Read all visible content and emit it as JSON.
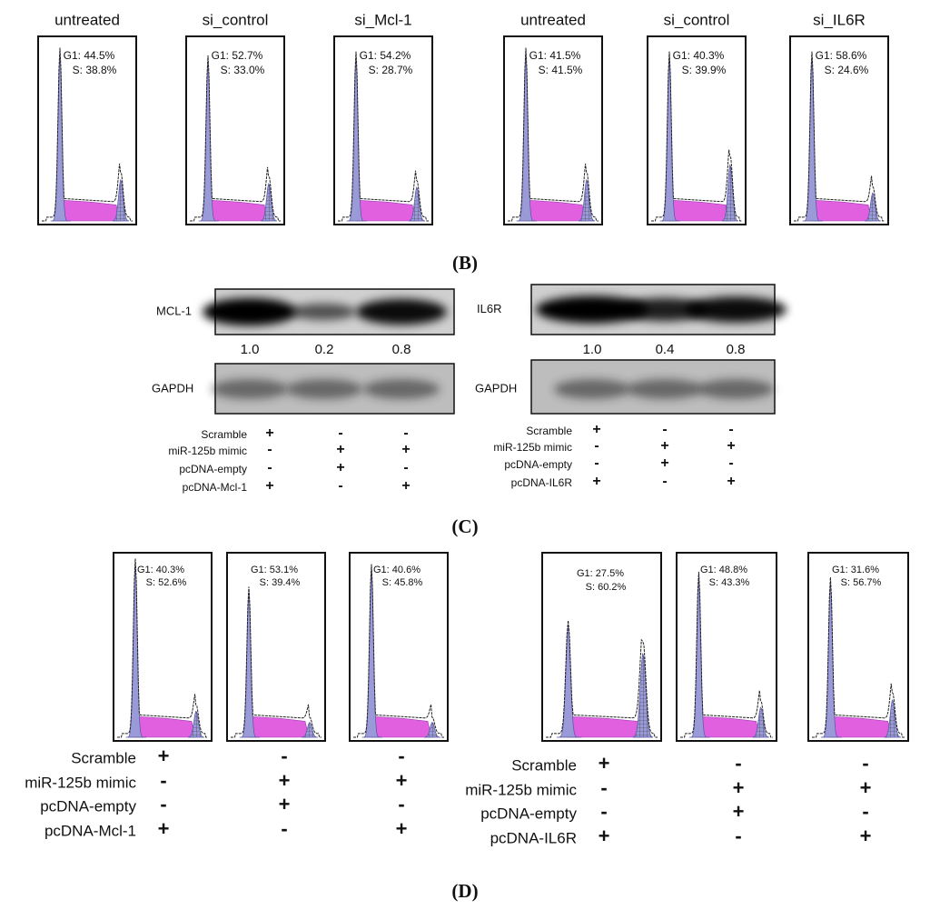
{
  "panel_b": {
    "label": "(B)",
    "plots": [
      {
        "title": "untreated",
        "g1": "G1: 44.5%",
        "s": "S: 38.8%"
      },
      {
        "title": "si_control",
        "g1": "G1: 52.7%",
        "s": "S: 33.0%"
      },
      {
        "title": "si_Mcl-1",
        "g1": "G1: 54.2%",
        "s": "S: 28.7%"
      },
      {
        "title": "untreated",
        "g1": "G1: 41.5%",
        "s": "S: 41.5%"
      },
      {
        "title": "si_control",
        "g1": "G1: 40.3%",
        "s": "S: 39.9%"
      },
      {
        "title": "si_IL6R",
        "g1": "G1: 58.6%",
        "s": "S: 24.6%"
      }
    ]
  },
  "panel_c": {
    "label": "(C)",
    "blots": [
      {
        "target": "MCL-1",
        "ratios": [
          "1.0",
          "0.2",
          "0.8"
        ],
        "control": "GAPDH"
      },
      {
        "target": "IL6R",
        "ratios": [
          "1.0",
          "0.4",
          "0.8"
        ],
        "control": "GAPDH"
      }
    ],
    "conditions": [
      [
        {
          "label": "Scramble",
          "signs": [
            "+",
            "-",
            "-"
          ]
        },
        {
          "label": "miR-125b mimic",
          "signs": [
            "-",
            "+",
            "+"
          ]
        },
        {
          "label": "pcDNA-empty",
          "signs": [
            "-",
            "+",
            "-"
          ]
        },
        {
          "label": "pcDNA-Mcl-1",
          "signs": [
            "+",
            "-",
            "+"
          ]
        }
      ],
      [
        {
          "label": "Scramble",
          "signs": [
            "+",
            "-",
            "-"
          ]
        },
        {
          "label": "miR-125b mimic",
          "signs": [
            "-",
            "+",
            "+"
          ]
        },
        {
          "label": "pcDNA-empty",
          "signs": [
            "-",
            "+",
            "-"
          ]
        },
        {
          "label": "pcDNA-IL6R",
          "signs": [
            "+",
            "-",
            "+"
          ]
        }
      ]
    ]
  },
  "panel_d": {
    "label": "(D)",
    "plots": [
      {
        "g1": "G1: 40.3%",
        "s": "S: 52.6%"
      },
      {
        "g1": "G1: 53.1%",
        "s": "S: 39.4%"
      },
      {
        "g1": "G1: 40.6%",
        "s": "S: 45.8%"
      },
      {
        "g1": "G1: 27.5%",
        "s": "S: 60.2%"
      },
      {
        "g1": "G1: 48.8%",
        "s": "S: 43.3%"
      },
      {
        "g1": "G1: 31.6%",
        "s": "S: 56.7%"
      }
    ],
    "conditions": [
      [
        {
          "label": "Scramble",
          "signs": [
            "+",
            "-",
            "-"
          ]
        },
        {
          "label": "miR-125b mimic",
          "signs": [
            "-",
            "+",
            "+"
          ]
        },
        {
          "label": "pcDNA-empty",
          "signs": [
            "-",
            "+",
            "-"
          ]
        },
        {
          "label": "pcDNA-Mcl-1",
          "signs": [
            "+",
            "-",
            "+"
          ]
        }
      ],
      [
        {
          "label": "Scramble",
          "signs": [
            "+",
            "-",
            "-"
          ]
        },
        {
          "label": "miR-125b mimic",
          "signs": [
            "-",
            "+",
            "+"
          ]
        },
        {
          "label": "pcDNA-empty",
          "signs": [
            "-",
            "+",
            "-"
          ]
        },
        {
          "label": "pcDNA-IL6R",
          "signs": [
            "+",
            "-",
            "+"
          ]
        }
      ]
    ]
  }
}
